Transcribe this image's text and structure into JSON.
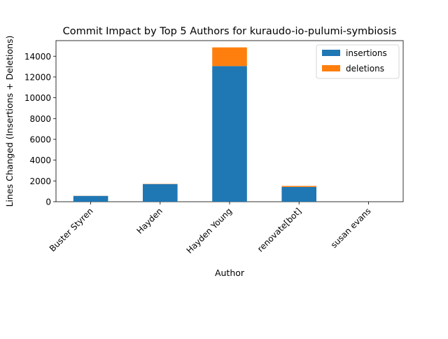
{
  "chart_data": {
    "type": "bar",
    "stacked": true,
    "title": "Commit Impact by Top 5 Authors for kuraudo-io-pulumi-symbiosis",
    "xlabel": "Author",
    "ylabel": "Lines Changed (Insertions + Deletions)",
    "categories": [
      "Buster Styren",
      "Hayden",
      "Hayden Young",
      "renovate[bot]",
      "susan evans"
    ],
    "series": [
      {
        "name": "insertions",
        "color": "#1f77b4",
        "values": [
          560,
          1700,
          13050,
          1420,
          0
        ]
      },
      {
        "name": "deletions",
        "color": "#ff7f0e",
        "values": [
          10,
          20,
          1800,
          100,
          0
        ]
      }
    ],
    "ylim": [
      0,
      15500
    ],
    "yticks": [
      0,
      2000,
      4000,
      6000,
      8000,
      10000,
      12000,
      14000
    ],
    "ytick_labels": [
      "0",
      "2000",
      "4000",
      "6000",
      "8000",
      "10000",
      "12000",
      "14000"
    ],
    "grid": false,
    "legend_position": "top-right"
  }
}
